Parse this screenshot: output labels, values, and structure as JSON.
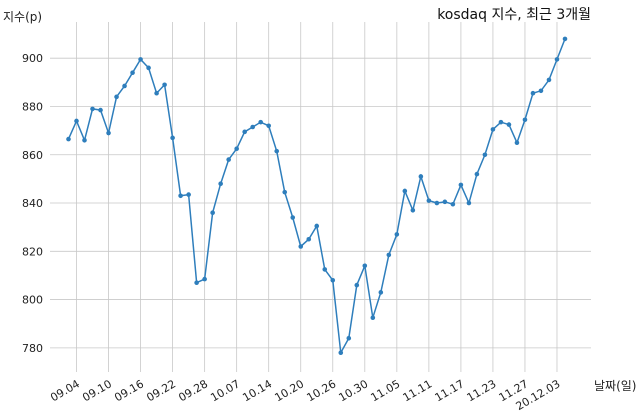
{
  "chart_data": {
    "type": "line",
    "title": "kosdaq 지수, 최근 3개월",
    "xlabel": "날짜(일)",
    "ylabel": "지수(p)",
    "ylim": [
      770,
      915
    ],
    "y_ticks": [
      780,
      800,
      820,
      840,
      860,
      880,
      900
    ],
    "x_tick_labels": [
      "09.04",
      "09.10",
      "09.16",
      "09.22",
      "09.28",
      "10.07",
      "10.14",
      "10.20",
      "10.26",
      "10.30",
      "11.05",
      "11.11",
      "11.17",
      "11.23",
      "11.27",
      "20.12.03"
    ],
    "grid": true,
    "series": [
      {
        "color": "#2e7ebc",
        "values": [
          866.5,
          874,
          866,
          879,
          878.5,
          869,
          884,
          888.5,
          894,
          899.5,
          896,
          885.5,
          889,
          867,
          843,
          843.5,
          807,
          808.5,
          836,
          848,
          858,
          862.5,
          869.5,
          871.5,
          873.5,
          872,
          861.5,
          844.5,
          834,
          822,
          825,
          830.5,
          812.5,
          808,
          778,
          784,
          806,
          814,
          792.5,
          803,
          818.5,
          827,
          845,
          837,
          851,
          841,
          840,
          840.5,
          839.5,
          847.5,
          840,
          852,
          860,
          870.5,
          873.5,
          872.5,
          865,
          874.5,
          885.5,
          886.5,
          891,
          899.5,
          908
        ]
      }
    ]
  }
}
